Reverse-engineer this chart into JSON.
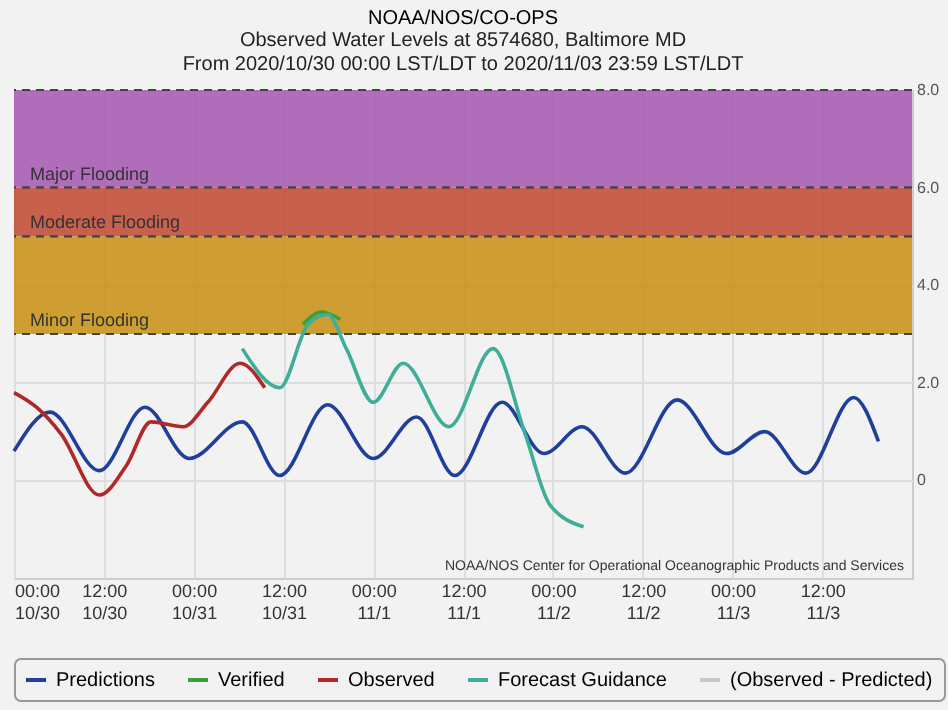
{
  "chart_data": {
    "type": "line",
    "title": "NOAA/NOS/CO-OPS",
    "subtitle": "Observed Water Levels at 8574680, Baltimore MD\nFrom 2020/10/30 00:00 LST/LDT to 2020/11/03 23:59 LST/LDT",
    "xlim": [
      "2020-10-30T00:00",
      "2020-11-03T23:59"
    ],
    "xticks": [
      {
        "value": "2020-10-30T00:00",
        "label": "00:00\n10/30"
      },
      {
        "value": "2020-10-30T12:00",
        "label": "12:00\n10/30"
      },
      {
        "value": "2020-10-31T00:00",
        "label": "00:00\n10/31"
      },
      {
        "value": "2020-10-31T12:00",
        "label": "12:00\n10/31"
      },
      {
        "value": "2020-11-01T00:00",
        "label": "00:00\n11/1"
      },
      {
        "value": "2020-11-01T12:00",
        "label": "12:00\n11/1"
      },
      {
        "value": "2020-11-02T00:00",
        "label": "00:00\n11/2"
      },
      {
        "value": "2020-11-02T12:00",
        "label": "12:00\n11/2"
      },
      {
        "value": "2020-11-03T00:00",
        "label": "00:00\n11/3"
      },
      {
        "value": "2020-11-03T12:00",
        "label": "12:00\n11/3"
      }
    ],
    "ylim": [
      -2,
      8
    ],
    "yticks": [
      {
        "value": 8,
        "label": "8.0"
      },
      {
        "value": 6,
        "label": "6.0"
      },
      {
        "value": 4,
        "label": "4.0"
      },
      {
        "value": 2,
        "label": "2.0"
      },
      0
    ],
    "grid": true,
    "legend": "bottom",
    "bands": [
      {
        "axis": "y",
        "from": 6,
        "to": 8,
        "label": "Major Flooding",
        "color": "#a457b0"
      },
      {
        "axis": "y",
        "from": 5,
        "to": 6,
        "label": "Moderate Flooding",
        "color": "#c0472f"
      },
      {
        "axis": "y",
        "from": 3,
        "to": 5,
        "label": "Minor Flooding",
        "color": "#c98f10"
      }
    ],
    "annotations": [
      "NOAA/NOS Center for Operational Oceanographic Products and Services"
    ],
    "series": [
      {
        "name": "Predictions",
        "color": "#1f3f9a",
        "x": [
          "2020-10-30T00:00",
          "2020-10-30T04:48",
          "2020-10-30T11:24",
          "2020-10-30T17:30",
          "2020-10-30T23:24",
          "2020-10-31T06:30",
          "2020-10-31T11:30",
          "2020-10-31T17:54",
          "2020-11-01T00:00",
          "2020-11-01T05:48",
          "2020-11-01T10:54",
          "2020-11-01T17:12",
          "2020-11-01T22:48",
          "2020-11-02T03:54",
          "2020-11-02T09:42",
          "2020-11-02T16:36",
          "2020-11-02T23:12",
          "2020-11-03T04:18",
          "2020-11-03T09:48",
          "2020-11-03T16:12",
          "2020-11-03T19:30"
        ],
        "values": [
          0.6,
          1.4,
          0.2,
          1.5,
          0.45,
          1.2,
          0.1,
          1.55,
          0.45,
          1.3,
          0.1,
          1.6,
          0.55,
          1.1,
          0.15,
          1.65,
          0.55,
          1.0,
          0.15,
          1.7,
          0.8
        ]
      },
      {
        "name": "Verified",
        "color": "#3aa03a",
        "x": [
          "2020-10-31T14:36",
          "2020-10-31T17:06",
          "2020-10-31T19:36"
        ],
        "values": [
          3.2,
          3.45,
          3.3
        ]
      },
      {
        "name": "Observed",
        "color": "#b02828",
        "x": [
          "2020-10-30T00:00",
          "2020-10-30T03:00",
          "2020-10-30T06:18",
          "2020-10-30T11:24",
          "2020-10-30T15:00",
          "2020-10-30T18:18",
          "2020-10-30T22:36",
          "2020-10-31T01:54",
          "2020-10-31T06:12",
          "2020-10-31T09:30"
        ],
        "values": [
          1.8,
          1.5,
          0.95,
          -0.3,
          0.3,
          1.2,
          1.1,
          1.6,
          2.4,
          1.9
        ]
      },
      {
        "name": "Forecast Guidance",
        "color": "#3fae98",
        "x": [
          "2020-10-31T06:30",
          "2020-10-31T11:30",
          "2020-10-31T15:18",
          "2020-10-31T17:54",
          "2020-10-31T20:24",
          "2020-11-01T00:00",
          "2020-11-01T04:00",
          "2020-11-01T10:06",
          "2020-11-01T16:00",
          "2020-11-01T20:18",
          "2020-11-01T23:36",
          "2020-11-02T04:06"
        ],
        "values": [
          2.7,
          1.9,
          3.2,
          3.4,
          2.7,
          1.6,
          2.4,
          1.1,
          2.7,
          0.95,
          -0.5,
          -0.95
        ]
      },
      {
        "name": "(Observed - Predicted)",
        "color": "#c8c8c8"
      }
    ]
  }
}
